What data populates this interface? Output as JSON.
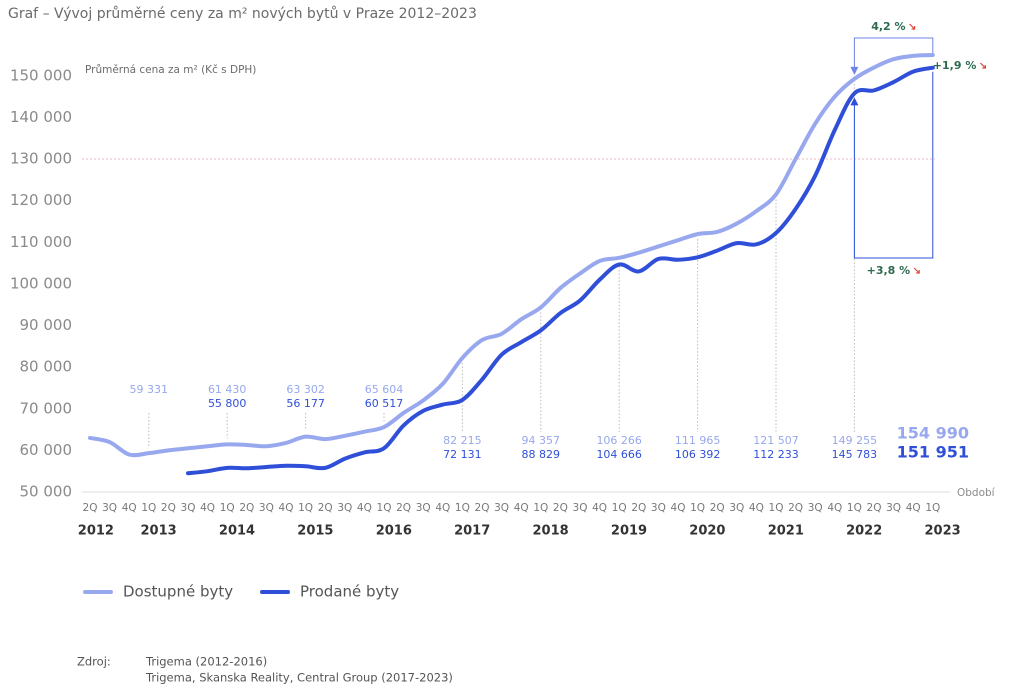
{
  "chart_data": {
    "type": "line",
    "title": "Graf – Vývoj průměrné ceny za m² nových bytů v Praze  2012–2023",
    "y_label": "Průměrná cena za m² (Kč s DPH)",
    "x_label": "Období",
    "categories": [
      "2Q",
      "3Q",
      "4Q",
      "1Q",
      "2Q",
      "3Q",
      "4Q",
      "1Q",
      "2Q",
      "3Q",
      "4Q",
      "1Q",
      "2Q",
      "3Q",
      "4Q",
      "1Q",
      "2Q",
      "3Q",
      "4Q",
      "1Q",
      "2Q",
      "3Q",
      "4Q",
      "1Q",
      "2Q",
      "3Q",
      "4Q",
      "1Q",
      "2Q",
      "3Q",
      "4Q",
      "1Q",
      "2Q",
      "3Q",
      "4Q",
      "1Q",
      "2Q",
      "3Q",
      "4Q",
      "1Q",
      "2Q",
      "3Q",
      "4Q",
      "1Q"
    ],
    "years": [
      "2012",
      "2013",
      "2014",
      "2015",
      "2016",
      "2017",
      "2018",
      "2019",
      "2020",
      "2021",
      "2022",
      "2023"
    ],
    "series": [
      {
        "name": "Dostupné byty",
        "color": "#97a8ee",
        "values": [
          63000,
          62000,
          59000,
          59331,
          60000,
          60500,
          61000,
          61430,
          61300,
          61000,
          61800,
          63302,
          62700,
          63500,
          64500,
          65604,
          69000,
          72000,
          76000,
          82215,
          86500,
          88000,
          91500,
          94357,
          99000,
          102500,
          105500,
          106266,
          107500,
          109000,
          110500,
          111965,
          112500,
          114500,
          117500,
          121507,
          130000,
          138500,
          145000,
          149255,
          152000,
          154000,
          154800,
          154990
        ],
        "value_labels": [
          null,
          null,
          null,
          "59 331",
          null,
          null,
          null,
          "61 430",
          null,
          null,
          null,
          "63 302",
          null,
          null,
          null,
          "65 604",
          null,
          null,
          null,
          "82 215",
          null,
          null,
          null,
          "94 357",
          null,
          null,
          null,
          "106 266",
          null,
          null,
          null,
          "111 965",
          null,
          null,
          null,
          "121 507",
          null,
          null,
          null,
          "149 255",
          null,
          null,
          null,
          "154 990"
        ]
      },
      {
        "name": "Prodané byty",
        "color": "#2f4fd8",
        "values": [
          null,
          null,
          null,
          null,
          null,
          54500,
          55000,
          55800,
          55700,
          56000,
          56300,
          56177,
          55800,
          58000,
          59500,
          60517,
          66000,
          69500,
          71000,
          72131,
          77000,
          83000,
          86000,
          88829,
          93000,
          96000,
          101000,
          104666,
          103000,
          106000,
          105800,
          106392,
          108000,
          109800,
          109500,
          112233,
          118000,
          126000,
          137000,
          145783,
          146500,
          148500,
          151000,
          151951
        ],
        "value_labels": [
          null,
          null,
          null,
          null,
          null,
          null,
          null,
          "55 800",
          null,
          null,
          null,
          "56 177",
          null,
          null,
          null,
          "60 517",
          null,
          null,
          null,
          "72 131",
          null,
          null,
          null,
          "88 829",
          null,
          null,
          null,
          "104 666",
          null,
          null,
          null,
          "106 392",
          null,
          null,
          null,
          "112 233",
          null,
          null,
          null,
          "145 783",
          null,
          null,
          null,
          "151 951"
        ]
      }
    ],
    "ylim": [
      50000,
      155000
    ],
    "yticks": [
      {
        "value": 50000,
        "label": "50 000"
      },
      {
        "value": 60000,
        "label": "60 000"
      },
      {
        "value": 70000,
        "label": "70 000"
      },
      {
        "value": 80000,
        "label": "80 000"
      },
      {
        "value": 90000,
        "label": "90 000"
      },
      {
        "value": 100000,
        "label": "100 000"
      },
      {
        "value": 110000,
        "label": "110 000"
      },
      {
        "value": 120000,
        "label": "120 000"
      },
      {
        "value": 130000,
        "label": "130 000"
      },
      {
        "value": 140000,
        "label": "140 000"
      },
      {
        "value": 150000,
        "label": "150 000"
      }
    ],
    "reference_line": 130000,
    "annotations": [
      "4,2 %",
      "+1,9 %",
      "+3,8 %"
    ]
  },
  "source": {
    "label": "Zdroj:",
    "lines": [
      "Trigema (2012-2016)",
      "Trigema, Skanska Reality, Central Group (2017-2023)"
    ]
  }
}
